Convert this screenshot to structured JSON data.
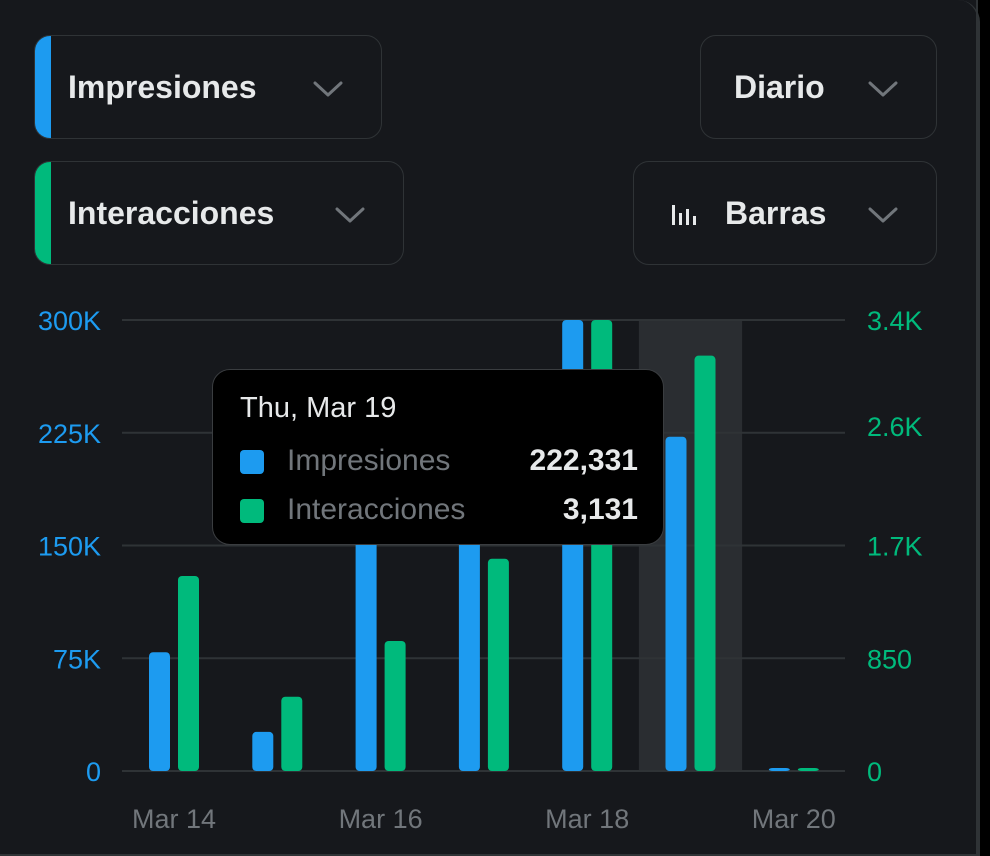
{
  "controls": {
    "metric1": {
      "label": "Impresiones",
      "color": "#1d9bf0"
    },
    "metric2": {
      "label": "Interacciones",
      "color": "#00ba7c"
    },
    "interval": {
      "label": "Diario"
    },
    "chart_type": {
      "label": "Barras"
    }
  },
  "tooltip": {
    "date": "Thu, Mar 19",
    "rows": [
      {
        "name": "Impresiones",
        "value": "222,331",
        "color": "#1d9bf0"
      },
      {
        "name": "Interacciones",
        "value": "3,131",
        "color": "#00ba7c"
      }
    ]
  },
  "chart_data": {
    "type": "bar",
    "categories": [
      "Mar 14",
      "Mar 15",
      "Mar 16",
      "Mar 17",
      "Mar 18",
      "Mar 19",
      "Mar 20"
    ],
    "x_tick_labels": [
      "Mar 14",
      "Mar 16",
      "Mar 18",
      "Mar 20"
    ],
    "highlighted_category": "Mar 19",
    "series": [
      {
        "name": "Impresiones",
        "axis": "left",
        "color": "#1d9bf0",
        "values": [
          79000,
          26000,
          162000,
          170000,
          300000,
          222331,
          0
        ]
      },
      {
        "name": "Interacciones",
        "axis": "right",
        "color": "#00ba7c",
        "values": [
          1470,
          560,
          980,
          1600,
          3400,
          3131,
          0
        ]
      }
    ],
    "y_left": {
      "ylim": [
        0,
        300000
      ],
      "ticks": [
        0,
        75000,
        150000,
        225000,
        300000
      ],
      "tick_labels": [
        "0",
        "75K",
        "150K",
        "225K",
        "300K"
      ],
      "color": "#1d9bf0"
    },
    "y_right": {
      "ylim": [
        0,
        3400
      ],
      "ticks": [
        0,
        850,
        1700,
        2600,
        3400
      ],
      "tick_labels": [
        "0",
        "850",
        "1.7K",
        "2.6K",
        "3.4K"
      ],
      "color": "#00ba7c"
    },
    "grid": true
  }
}
